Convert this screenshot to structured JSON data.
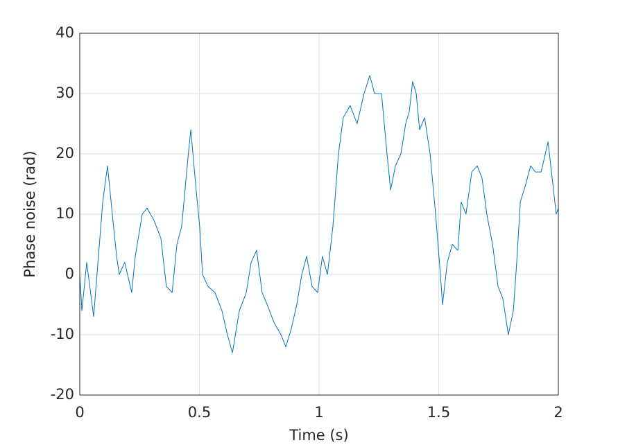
{
  "chart_data": {
    "type": "line",
    "xlabel": "Time (s)",
    "ylabel": "Phase noise (rad)",
    "xlim": [
      0,
      2
    ],
    "xticks": [
      0,
      0.5,
      1,
      1.5,
      2
    ],
    "ylim": [
      -20,
      40
    ],
    "yticks": [
      -20,
      -10,
      0,
      10,
      20,
      30,
      40
    ],
    "grid": true,
    "series": [
      {
        "color": "#0072bd",
        "x": [
          0,
          0.009,
          0.029,
          0.058,
          0.096,
          0.116,
          0.136,
          0.154,
          0.165,
          0.188,
          0.217,
          0.232,
          0.261,
          0.281,
          0.31,
          0.339,
          0.362,
          0.386,
          0.406,
          0.426,
          0.449,
          0.464,
          0.484,
          0.501,
          0.513,
          0.536,
          0.565,
          0.594,
          0.617,
          0.638,
          0.667,
          0.696,
          0.716,
          0.739,
          0.762,
          0.783,
          0.812,
          0.841,
          0.861,
          0.884,
          0.907,
          0.928,
          0.948,
          0.971,
          0.994,
          1.014,
          1.035,
          1.058,
          1.081,
          1.101,
          1.13,
          1.159,
          1.188,
          1.212,
          1.232,
          1.261,
          1.284,
          1.299,
          1.319,
          1.342,
          1.362,
          1.377,
          1.391,
          1.406,
          1.42,
          1.441,
          1.464,
          1.487,
          1.507,
          1.516,
          1.536,
          1.557,
          1.58,
          1.594,
          1.614,
          1.638,
          1.661,
          1.681,
          1.701,
          1.725,
          1.748,
          1.768,
          1.791,
          1.812,
          1.826,
          1.841,
          1.864,
          1.884,
          1.904,
          1.928,
          1.957,
          1.977,
          1.991,
          2
        ],
        "values": [
          0,
          -6,
          2,
          -7,
          12,
          18,
          10,
          3,
          0,
          2,
          -3,
          3,
          10,
          11,
          9,
          6,
          -2,
          -3,
          5,
          8,
          18,
          24,
          15,
          8,
          0,
          -2,
          -3,
          -6,
          -10,
          -13,
          -6,
          -3,
          2,
          4,
          -3,
          -5,
          -8,
          -10,
          -12,
          -9,
          -5,
          0,
          3,
          -2,
          -3,
          3,
          0,
          8,
          20,
          26,
          28,
          25,
          30,
          33,
          30,
          30,
          20,
          14,
          18,
          20,
          25,
          27,
          32,
          30,
          24,
          26,
          20,
          10,
          0,
          -5,
          2,
          5,
          4,
          12,
          10,
          17,
          18,
          16,
          10,
          5,
          -2,
          -4,
          -10,
          -6,
          2,
          12,
          15,
          18,
          17,
          17,
          22,
          15,
          10,
          11
        ]
      }
    ]
  }
}
